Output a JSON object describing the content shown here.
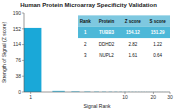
{
  "chart_data": {
    "type": "bar",
    "title": "Human Protein Microarray Specificity Validation",
    "xlabel": "Signal Rank",
    "ylabel": "Strength of Signal (Z score)",
    "x": [
      1,
      2,
      3,
      4,
      5,
      6,
      7,
      8,
      9,
      10,
      11,
      12,
      13,
      14,
      15,
      16,
      17,
      18,
      19,
      20,
      21,
      22,
      23,
      24,
      25,
      26,
      27,
      28,
      29,
      30
    ],
    "values": [
      154.12,
      2.82,
      1.61,
      1.2,
      1.0,
      0.9,
      0.8,
      0.75,
      0.7,
      0.65,
      0.6,
      0.58,
      0.55,
      0.52,
      0.5,
      0.48,
      0.46,
      0.44,
      0.42,
      0.4,
      0.38,
      0.36,
      0.34,
      0.32,
      0.3,
      0.28,
      0.26,
      0.24,
      0.22,
      0.2
    ],
    "colors": [
      "#1aa8d8",
      "#5bc8e8",
      "#5bc8e8",
      "#5bc8e8",
      "#5bc8e8",
      "#5bc8e8",
      "#5bc8e8",
      "#5bc8e8",
      "#5bc8e8",
      "#5bc8e8",
      "#5bc8e8",
      "#5bc8e8",
      "#5bc8e8",
      "#5bc8e8",
      "#5bc8e8",
      "#5bc8e8",
      "#5bc8e8",
      "#5bc8e8",
      "#5bc8e8",
      "#5bc8e8",
      "#5bc8e8",
      "#5bc8e8",
      "#5bc8e8",
      "#5bc8e8",
      "#5bc8e8",
      "#5bc8e8",
      "#5bc8e8",
      "#5bc8e8",
      "#5bc8e8",
      "#5bc8e8"
    ],
    "log": "x",
    "xlim": [
      0.85,
      30
    ],
    "xticks": [
      1,
      10,
      20,
      30
    ],
    "ylim": [
      0,
      190
    ],
    "yticks": [
      0,
      38,
      76,
      114,
      152,
      190
    ],
    "grid": false,
    "table": {
      "header": [
        "Rank",
        "Protein",
        "Z score",
        "S score"
      ],
      "rows": [
        [
          "1",
          "TUBB3",
          "154.12",
          "151.29"
        ],
        [
          "2",
          "DDHD2",
          "2.82",
          "1.22"
        ],
        [
          "3",
          "NUPL2",
          "1.61",
          "0.64"
        ]
      ],
      "colors": [
        "#7ec8e0",
        "#4db8d8",
        "#ffffff",
        "#ffffff"
      ]
    }
  }
}
